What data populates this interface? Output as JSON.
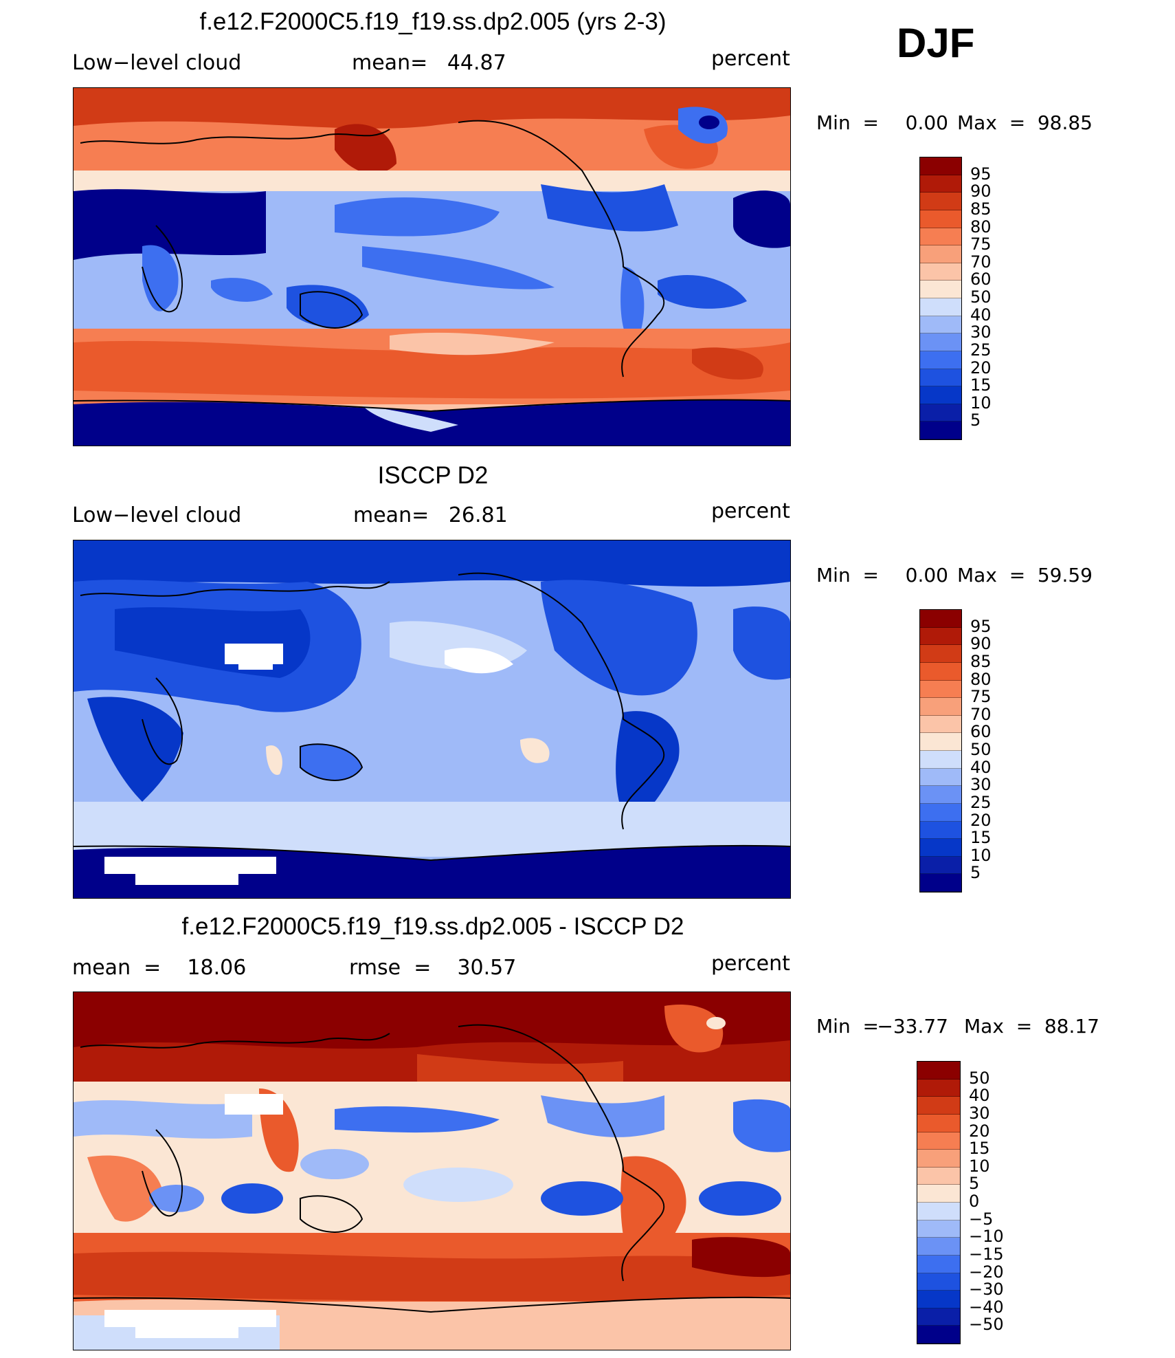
{
  "season": "DJF",
  "palette_abs": [
    "#00008a",
    "#0a1fa8",
    "#0637c8",
    "#1e52e0",
    "#3d6ff0",
    "#6b92f5",
    "#9fbaf8",
    "#cfdefb",
    "#fbe6d4",
    "#fbc4a8",
    "#f8a07a",
    "#f67e52",
    "#ea5a2c",
    "#d13b16",
    "#b01a08",
    "#8b0000"
  ],
  "palette_diff": [
    "#00008a",
    "#0a1fa8",
    "#0637c8",
    "#1e52e0",
    "#3d6ff0",
    "#6b92f5",
    "#9fbaf8",
    "#cfdefb",
    "#fbe6d4",
    "#fbc4a8",
    "#f8a07a",
    "#f67e52",
    "#ea5a2c",
    "#d13b16",
    "#b01a08",
    "#8b0000"
  ],
  "panels": [
    {
      "title": "f.e12.F2000C5.f19_f19.ss.dp2.005 (yrs 2-3)",
      "left_label": "Low−level cloud",
      "center_label": "mean=   44.87",
      "units": "percent",
      "min_label": "Min  =",
      "min_value": "0.00",
      "max_label": "Max  =",
      "max_value": "98.85",
      "colorbar_levels": [
        "95",
        "90",
        "85",
        "80",
        "75",
        "70",
        "60",
        "50",
        "40",
        "30",
        "25",
        "20",
        "15",
        "10",
        "5"
      ]
    },
    {
      "title": "ISCCP D2",
      "left_label": "Low−level cloud",
      "center_label": "mean=   26.81",
      "units": "percent",
      "min_label": "Min  =",
      "min_value": "0.00",
      "max_label": "Max  =",
      "max_value": "59.59",
      "colorbar_levels": [
        "95",
        "90",
        "85",
        "80",
        "75",
        "70",
        "60",
        "50",
        "40",
        "30",
        "25",
        "20",
        "15",
        "10",
        "5"
      ]
    },
    {
      "title": "f.e12.F2000C5.f19_f19.ss.dp2.005 - ISCCP D2",
      "left_label": "mean  =    18.06",
      "center_label": "rmse  =    30.57",
      "units": "percent",
      "min_label": "Min  =",
      "min_value": "−33.77",
      "max_label": "Max  =",
      "max_value": "88.17",
      "colorbar_levels": [
        "50",
        "40",
        "30",
        "20",
        "15",
        "10",
        "5",
        "0",
        "−5",
        "−10",
        "−15",
        "−20",
        "−30",
        "−40",
        "−50"
      ]
    }
  ]
}
